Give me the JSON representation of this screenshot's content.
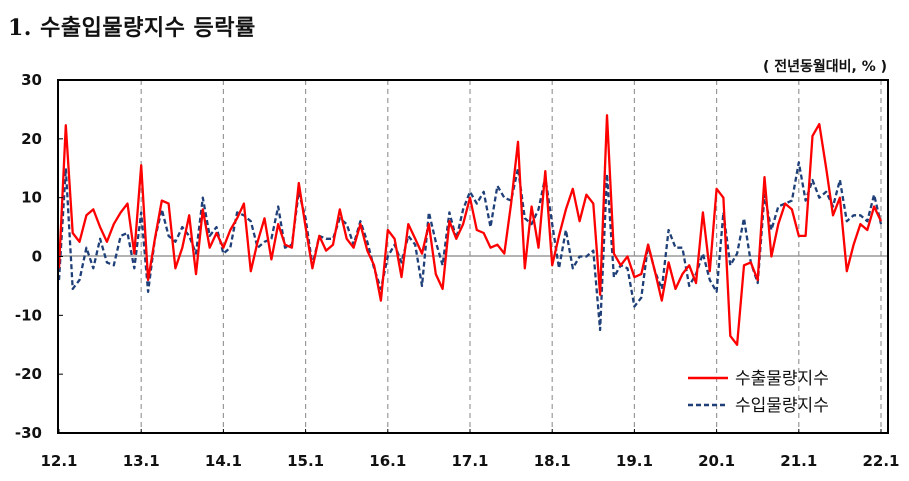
{
  "header": {
    "title": "1.  수출입물량지수 등락률",
    "unit": "( 전년동월대비, % )"
  },
  "chart_data": {
    "type": "line",
    "title": "수출입물량지수 등락률",
    "unit_label": "( 전년동월대비, % )",
    "xlabel": "",
    "ylabel": "",
    "ylim": [
      -30,
      30
    ],
    "yticks": [
      30,
      20,
      10,
      0,
      -10,
      -20,
      -30
    ],
    "xticks": [
      "12.1",
      "13.1",
      "14.1",
      "15.1",
      "16.1",
      "17.1",
      "18.1",
      "19.1",
      "20.1",
      "21.1",
      "22.1"
    ],
    "x_start": "2012.1",
    "x_end": "2022.2",
    "frequency": "monthly",
    "grid": "vertical dashed at each January",
    "legend_position": "lower right",
    "series": [
      {
        "name": "수출물량지수",
        "color": "#ff0000",
        "style": "solid",
        "values": [
          -2.0,
          22.3,
          4.0,
          2.5,
          7.0,
          8.0,
          5.0,
          2.5,
          5.5,
          7.5,
          9.0,
          0.5,
          15.5,
          -4.0,
          3.0,
          9.5,
          9.0,
          -2.0,
          1.5,
          7.0,
          -3.0,
          8.0,
          1.5,
          4.0,
          1.5,
          4.5,
          6.5,
          9.0,
          -2.5,
          2.5,
          6.5,
          -0.5,
          5.5,
          2.0,
          1.5,
          12.5,
          5.0,
          -2.0,
          3.5,
          1.0,
          2.0,
          8.0,
          3.0,
          1.5,
          5.5,
          1.0,
          -1.5,
          -7.5,
          4.5,
          3.0,
          -3.5,
          5.5,
          3.0,
          0.5,
          5.5,
          -3.0,
          -5.5,
          6.0,
          3.0,
          5.5,
          10.0,
          4.5,
          4.0,
          1.5,
          2.0,
          0.5,
          9.0,
          19.5,
          -2.0,
          8.5,
          1.5,
          14.5,
          -1.5,
          3.5,
          8.0,
          11.5,
          6.0,
          10.5,
          9.0,
          -6.5,
          24.0,
          0.5,
          -1.5,
          0.0,
          -3.5,
          -3.0,
          2.0,
          -2.5,
          -7.5,
          -1.0,
          -5.5,
          -3.0,
          -1.5,
          -4.5,
          7.5,
          -2.5,
          11.5,
          10.0,
          -13.5,
          -15.0,
          -1.5,
          -1.0,
          -4.0,
          13.5,
          0.0,
          5.5,
          9.0,
          8.0,
          3.5,
          3.5,
          20.5,
          22.5,
          15.0,
          7.0,
          10.0,
          -2.5,
          2.0,
          5.5,
          4.5,
          8.5,
          6.0
        ]
      },
      {
        "name": "수입물량지수",
        "color": "#1f3f78",
        "style": "dashed",
        "values": [
          -4.0,
          15.0,
          -5.5,
          -4.0,
          1.5,
          -2.0,
          3.0,
          -1.0,
          -1.5,
          3.5,
          4.0,
          -2.0,
          7.5,
          -6.0,
          3.0,
          8.0,
          3.5,
          2.5,
          5.0,
          3.5,
          0.5,
          10.0,
          3.5,
          5.0,
          0.5,
          1.5,
          7.5,
          7.0,
          6.0,
          1.5,
          2.5,
          3.0,
          8.5,
          1.5,
          2.0,
          11.0,
          6.5,
          -1.5,
          3.5,
          3.0,
          3.0,
          6.5,
          5.5,
          2.0,
          6.0,
          2.5,
          -2.0,
          -5.5,
          0.0,
          2.0,
          -1.0,
          3.5,
          2.0,
          -5.0,
          7.5,
          2.5,
          -1.5,
          7.5,
          3.0,
          8.0,
          11.0,
          9.0,
          11.0,
          5.0,
          12.0,
          10.0,
          9.5,
          15.0,
          6.5,
          5.5,
          8.0,
          13.5,
          5.5,
          -2.0,
          4.5,
          -2.0,
          0.0,
          0.0,
          1.0,
          -12.5,
          14.0,
          -3.5,
          -1.5,
          -2.0,
          -8.5,
          -7.0,
          2.0,
          -2.5,
          -5.5,
          4.5,
          1.5,
          1.5,
          -5.0,
          -3.0,
          0.5,
          -4.0,
          -6.0,
          7.5,
          -1.5,
          0.5,
          6.5,
          -1.0,
          -4.5,
          10.5,
          4.5,
          8.5,
          9.0,
          9.5,
          16.0,
          9.5,
          13.0,
          10.0,
          11.0,
          8.5,
          13.0,
          6.0,
          7.0,
          7.0,
          6.0,
          10.5,
          5.5
        ]
      }
    ]
  },
  "legend": {
    "items": [
      {
        "label": "수출물량지수",
        "color": "#ff0000",
        "style": "solid"
      },
      {
        "label": "수입물량지수",
        "color": "#1f3f78",
        "style": "dashed"
      }
    ]
  }
}
